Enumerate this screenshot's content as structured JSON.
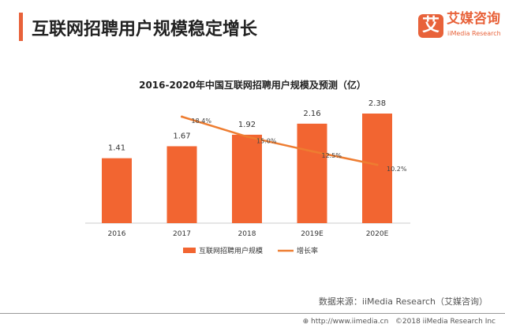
{
  "header": {
    "title": "互联网招聘用户规模稳定增长",
    "logo_mark": "艾",
    "logo_cn": "艾媒咨询",
    "logo_en": "iiMedia Research"
  },
  "chart_data": {
    "type": "bar",
    "title": "2016-2020年中国互联网招聘用户规模及预测（亿）",
    "categories": [
      "2016",
      "2017",
      "2018",
      "2019E",
      "2020E"
    ],
    "series": [
      {
        "name": "互联网招聘用户规模",
        "type": "bar",
        "values": [
          1.41,
          1.67,
          1.92,
          2.16,
          2.38
        ],
        "labels": [
          "1.41",
          "1.67",
          "1.92",
          "2.16",
          "2.38"
        ],
        "color": "#f26531"
      },
      {
        "name": "增长率",
        "type": "line",
        "values": [
          null,
          18.4,
          15.0,
          12.5,
          10.2
        ],
        "labels": [
          "",
          "18.4%",
          "15.0%",
          "12.5%",
          "10.2%"
        ],
        "color": "#ee7d31"
      }
    ],
    "legend": "bottom",
    "grid": false
  },
  "footer": {
    "source": "数据来源：iiMedia Research（艾媒咨询）",
    "url": "http://www.iimedia.cn",
    "copyright": "©2018  iiMedia Research  Inc"
  }
}
